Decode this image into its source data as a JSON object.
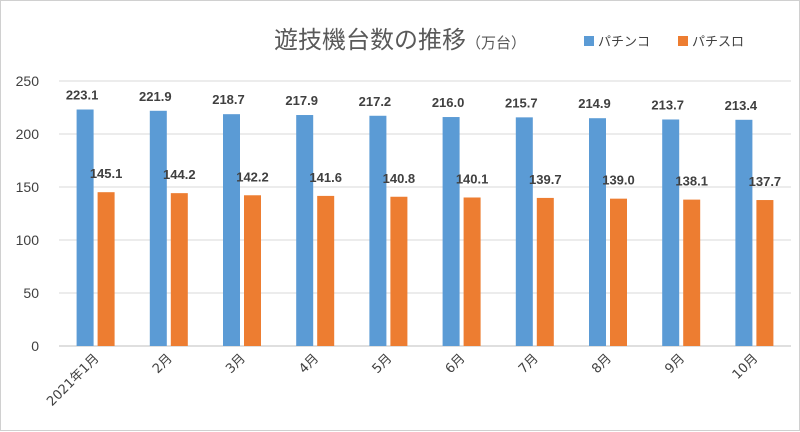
{
  "colors": {
    "pachinko": "#5b9bd5",
    "pachislot": "#ed7d31",
    "grid": "#d9d9d9"
  },
  "chart_data": {
    "type": "bar",
    "title": "遊技機台数の推移",
    "unit": "（万台）",
    "categories": [
      "2021年1月",
      "2月",
      "3月",
      "4月",
      "5月",
      "6月",
      "7月",
      "8月",
      "9月",
      "10月"
    ],
    "series": [
      {
        "name": "パチンコ",
        "values": [
          223.1,
          221.9,
          218.7,
          217.9,
          217.2,
          216.0,
          215.7,
          214.9,
          213.7,
          213.4
        ]
      },
      {
        "name": "パチスロ",
        "values": [
          145.1,
          144.2,
          142.2,
          141.6,
          140.8,
          140.1,
          139.7,
          139.0,
          138.1,
          137.7
        ]
      }
    ],
    "ylim": [
      0,
      250
    ],
    "yticks": [
      0,
      50,
      100,
      150,
      200,
      250
    ],
    "grid": true,
    "legend": "top-right"
  }
}
